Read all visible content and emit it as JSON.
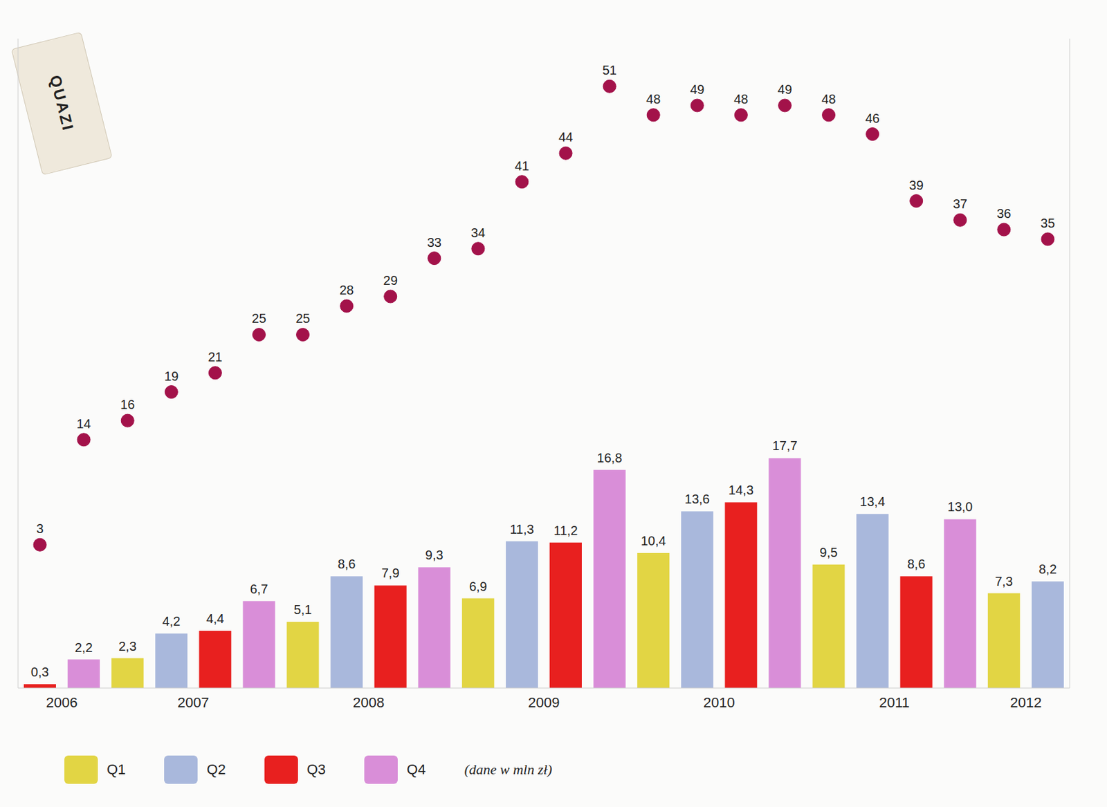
{
  "chart_data": {
    "type": "bar",
    "categories": [
      "2006",
      null,
      null,
      "2007",
      null,
      null,
      null,
      "2008",
      null,
      null,
      null,
      "2009",
      null,
      null,
      null,
      "2010",
      null,
      null,
      null,
      "2011",
      null,
      null,
      "2012",
      null
    ],
    "series": [
      {
        "name": "Q1",
        "color": "#e2d544",
        "values": [
          null,
          null,
          2.3,
          null,
          null,
          null,
          5.1,
          null,
          null,
          null,
          6.9,
          null,
          null,
          null,
          10.4,
          null,
          null,
          null,
          9.5,
          null,
          null,
          null,
          7.3,
          null
        ],
        "value_labels": [
          null,
          null,
          "2,3",
          null,
          null,
          null,
          "5,1",
          null,
          null,
          null,
          "6,9",
          null,
          null,
          null,
          "10,4",
          null,
          null,
          null,
          "9,5",
          null,
          null,
          null,
          "7,3",
          null
        ]
      },
      {
        "name": "Q2",
        "color": "#a9b8dc",
        "values": [
          null,
          null,
          null,
          4.2,
          null,
          null,
          null,
          8.6,
          null,
          null,
          null,
          11.3,
          null,
          null,
          null,
          13.6,
          null,
          null,
          null,
          13.4,
          null,
          null,
          null,
          8.2
        ],
        "value_labels": [
          null,
          null,
          null,
          "4,2",
          null,
          null,
          null,
          "8,6",
          null,
          null,
          null,
          "11,3",
          null,
          null,
          null,
          "13,6",
          null,
          null,
          null,
          "13,4",
          null,
          null,
          null,
          "8,2"
        ]
      },
      {
        "name": "Q3",
        "color": "#e8201f",
        "values": [
          0.3,
          null,
          null,
          null,
          4.4,
          null,
          null,
          null,
          7.9,
          null,
          null,
          null,
          11.2,
          null,
          null,
          null,
          14.3,
          null,
          null,
          null,
          8.6,
          null,
          null,
          null
        ],
        "value_labels": [
          "0,3",
          null,
          null,
          null,
          "4,4",
          null,
          null,
          null,
          "7,9",
          null,
          null,
          null,
          "11,2",
          null,
          null,
          null,
          "14,3",
          null,
          null,
          null,
          "8,6",
          null,
          null,
          null
        ]
      },
      {
        "name": "Q4",
        "color": "#d98ed8",
        "values": [
          null,
          2.2,
          null,
          null,
          null,
          6.7,
          null,
          null,
          null,
          9.3,
          null,
          null,
          null,
          16.8,
          null,
          null,
          null,
          17.7,
          null,
          null,
          null,
          13.0,
          null,
          null
        ],
        "value_labels": [
          null,
          "2,2",
          null,
          null,
          null,
          "6,7",
          null,
          null,
          null,
          "9,3",
          null,
          null,
          null,
          "16,8",
          null,
          null,
          null,
          "17,7",
          null,
          null,
          null,
          "13,0",
          null,
          null
        ]
      },
      {
        "type": "scatter",
        "axis": "y2",
        "color": "#a3124a",
        "values": [
          3,
          14,
          16,
          19,
          21,
          25,
          25,
          28,
          29,
          33,
          34,
          41,
          44,
          51,
          48,
          49,
          48,
          49,
          48,
          46,
          39,
          37,
          36,
          35
        ]
      }
    ],
    "ylim": [
      0,
      50
    ],
    "y2lim": [
      -12,
      56
    ],
    "stacked": true,
    "data_labels": true,
    "tick_labels": "x",
    "legend": "bottom-left",
    "annotations": [
      "(dane w mln zł)",
      "QUAZI"
    ]
  }
}
